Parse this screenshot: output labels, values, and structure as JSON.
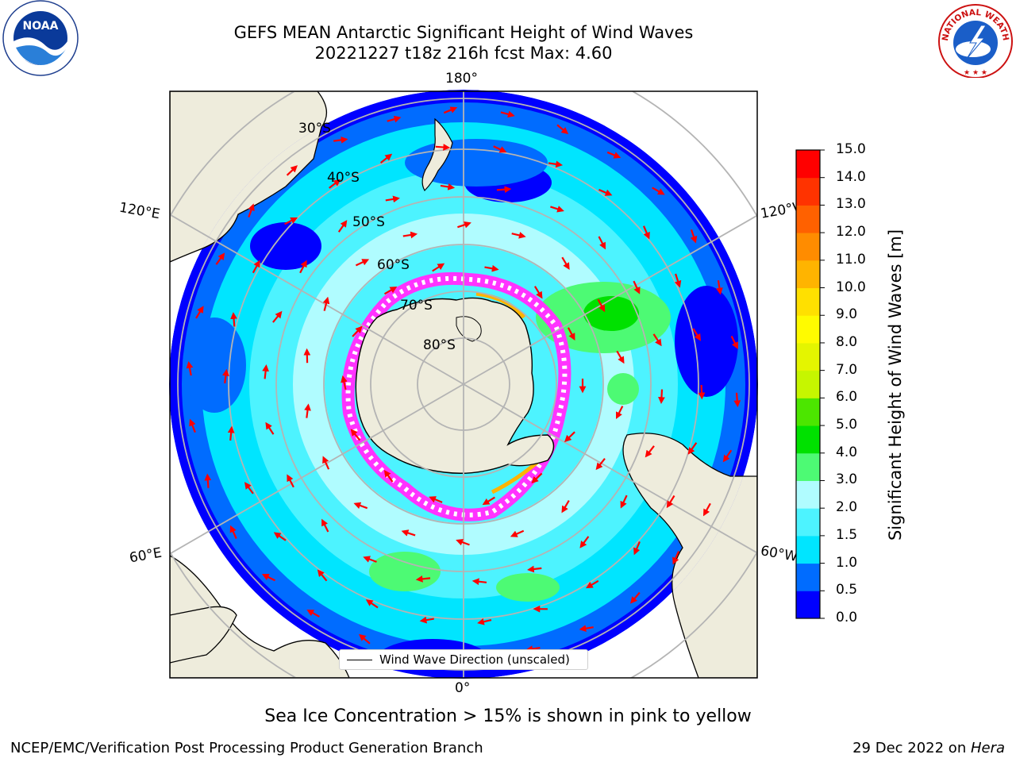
{
  "title": {
    "line1": "GEFS MEAN Antarctic Significant Height of Wind Waves",
    "line2": "20221227 t18z 216h fcst   Max: 4.60"
  },
  "logos": {
    "left": "NOAA",
    "right": "NATIONAL WEATHER SERVICE"
  },
  "map": {
    "projection": "south-polar-stereographic",
    "meridian_labels": {
      "top": "180°",
      "bottom": "0°",
      "upper_left": "120°E",
      "upper_right": "120°W",
      "lower_left": "60°E",
      "lower_right": "60°W"
    },
    "parallel_labels": [
      "30°S",
      "40°S",
      "50°S",
      "60°S",
      "70°S",
      "80°S"
    ],
    "legend": "Wind Wave Direction (unscaled)",
    "arrow_color": "#ff0000",
    "land_color": "#eeecdc"
  },
  "colorbar": {
    "label": "Significant Height of Wind Waves [m]",
    "ticks": [
      "0.0",
      "0.5",
      "1.0",
      "1.5",
      "2.0",
      "3.0",
      "4.0",
      "5.0",
      "6.0",
      "7.0",
      "8.0",
      "9.0",
      "10.0",
      "11.0",
      "12.0",
      "13.0",
      "14.0",
      "15.0"
    ],
    "colors": [
      "#0000ff",
      "#006cff",
      "#00e5ff",
      "#4df3ff",
      "#b0fcff",
      "#4dfa74",
      "#00e100",
      "#4ce600",
      "#c6f600",
      "#e4f500",
      "#fffb00",
      "#ffe000",
      "#ffb400",
      "#ff8c00",
      "#ff6100",
      "#ff3300",
      "#ff0000"
    ]
  },
  "caption": "Sea Ice Concentration > 15% is shown in pink to yellow",
  "footer": {
    "left": "NCEP/EMC/Verification Post Processing Product Generation Branch",
    "date": "29 Dec 2022 on ",
    "host": "Hera"
  }
}
